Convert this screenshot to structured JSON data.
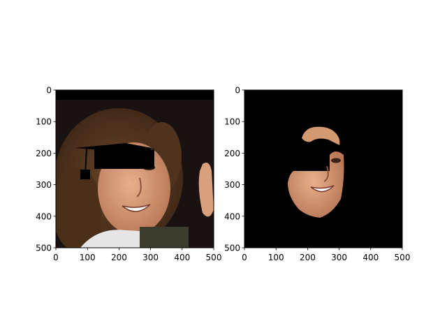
{
  "chart_data": [
    {
      "type": "image",
      "title": "",
      "xlabel": "",
      "ylabel": "",
      "xlim": [
        0,
        500
      ],
      "ylim": [
        500,
        0
      ],
      "xticks": [
        0,
        100,
        200,
        300,
        400,
        500
      ],
      "yticks": [
        0,
        100,
        200,
        300,
        400,
        500
      ],
      "content": "photo-face-with-graduation-cap-overlay"
    },
    {
      "type": "image",
      "title": "",
      "xlabel": "",
      "ylabel": "",
      "xlim": [
        0,
        500
      ],
      "ylim": [
        500,
        0
      ],
      "xticks": [
        0,
        100,
        200,
        300,
        400,
        500
      ],
      "yticks": [
        0,
        100,
        200,
        300,
        400,
        500
      ],
      "content": "masked-face-region-on-black"
    }
  ],
  "colors": {
    "background": "#000000",
    "hair": "#5a3a22",
    "skin": "#d9a07a",
    "shirt": "#e8e8e8",
    "cap": "#000000"
  }
}
